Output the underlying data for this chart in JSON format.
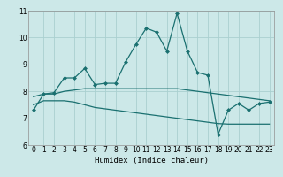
{
  "xlabel": "Humidex (Indice chaleur)",
  "ylabel": "",
  "xlim": [
    -0.5,
    23.5
  ],
  "ylim": [
    6,
    11
  ],
  "yticks": [
    6,
    7,
    8,
    9,
    10,
    11
  ],
  "xticks": [
    0,
    1,
    2,
    3,
    4,
    5,
    6,
    7,
    8,
    9,
    10,
    11,
    12,
    13,
    14,
    15,
    16,
    17,
    18,
    19,
    20,
    21,
    22,
    23
  ],
  "bg_color": "#cce8e8",
  "grid_color": "#aad0d0",
  "line_color": "#1a7070",
  "line1_x": [
    0,
    1,
    2,
    3,
    4,
    5,
    6,
    7,
    8,
    9,
    10,
    11,
    12,
    13,
    14,
    15,
    16,
    17,
    18,
    19,
    20,
    21,
    22,
    23
  ],
  "line1_y": [
    7.3,
    7.9,
    7.95,
    8.5,
    8.5,
    8.85,
    8.25,
    8.3,
    8.3,
    9.1,
    9.75,
    10.35,
    10.2,
    9.5,
    10.9,
    9.5,
    8.7,
    8.6,
    6.4,
    7.3,
    7.55,
    7.3,
    7.55,
    7.6
  ],
  "line2_x": [
    0,
    1,
    2,
    3,
    4,
    5,
    6,
    7,
    8,
    9,
    10,
    11,
    12,
    13,
    14,
    15,
    16,
    17,
    18,
    19,
    20,
    21,
    22,
    23
  ],
  "line2_y": [
    7.8,
    7.9,
    7.9,
    8.0,
    8.05,
    8.1,
    8.1,
    8.1,
    8.1,
    8.1,
    8.1,
    8.1,
    8.1,
    8.1,
    8.1,
    8.05,
    8.0,
    7.95,
    7.9,
    7.85,
    7.8,
    7.75,
    7.7,
    7.65
  ],
  "line3_x": [
    0,
    1,
    2,
    3,
    4,
    5,
    6,
    7,
    8,
    9,
    10,
    11,
    12,
    13,
    14,
    15,
    16,
    17,
    18,
    19,
    20,
    21,
    22,
    23
  ],
  "line3_y": [
    7.5,
    7.65,
    7.65,
    7.65,
    7.6,
    7.5,
    7.4,
    7.35,
    7.3,
    7.25,
    7.2,
    7.15,
    7.1,
    7.05,
    7.0,
    6.95,
    6.9,
    6.85,
    6.8,
    6.78,
    6.78,
    6.78,
    6.78,
    6.78
  ]
}
